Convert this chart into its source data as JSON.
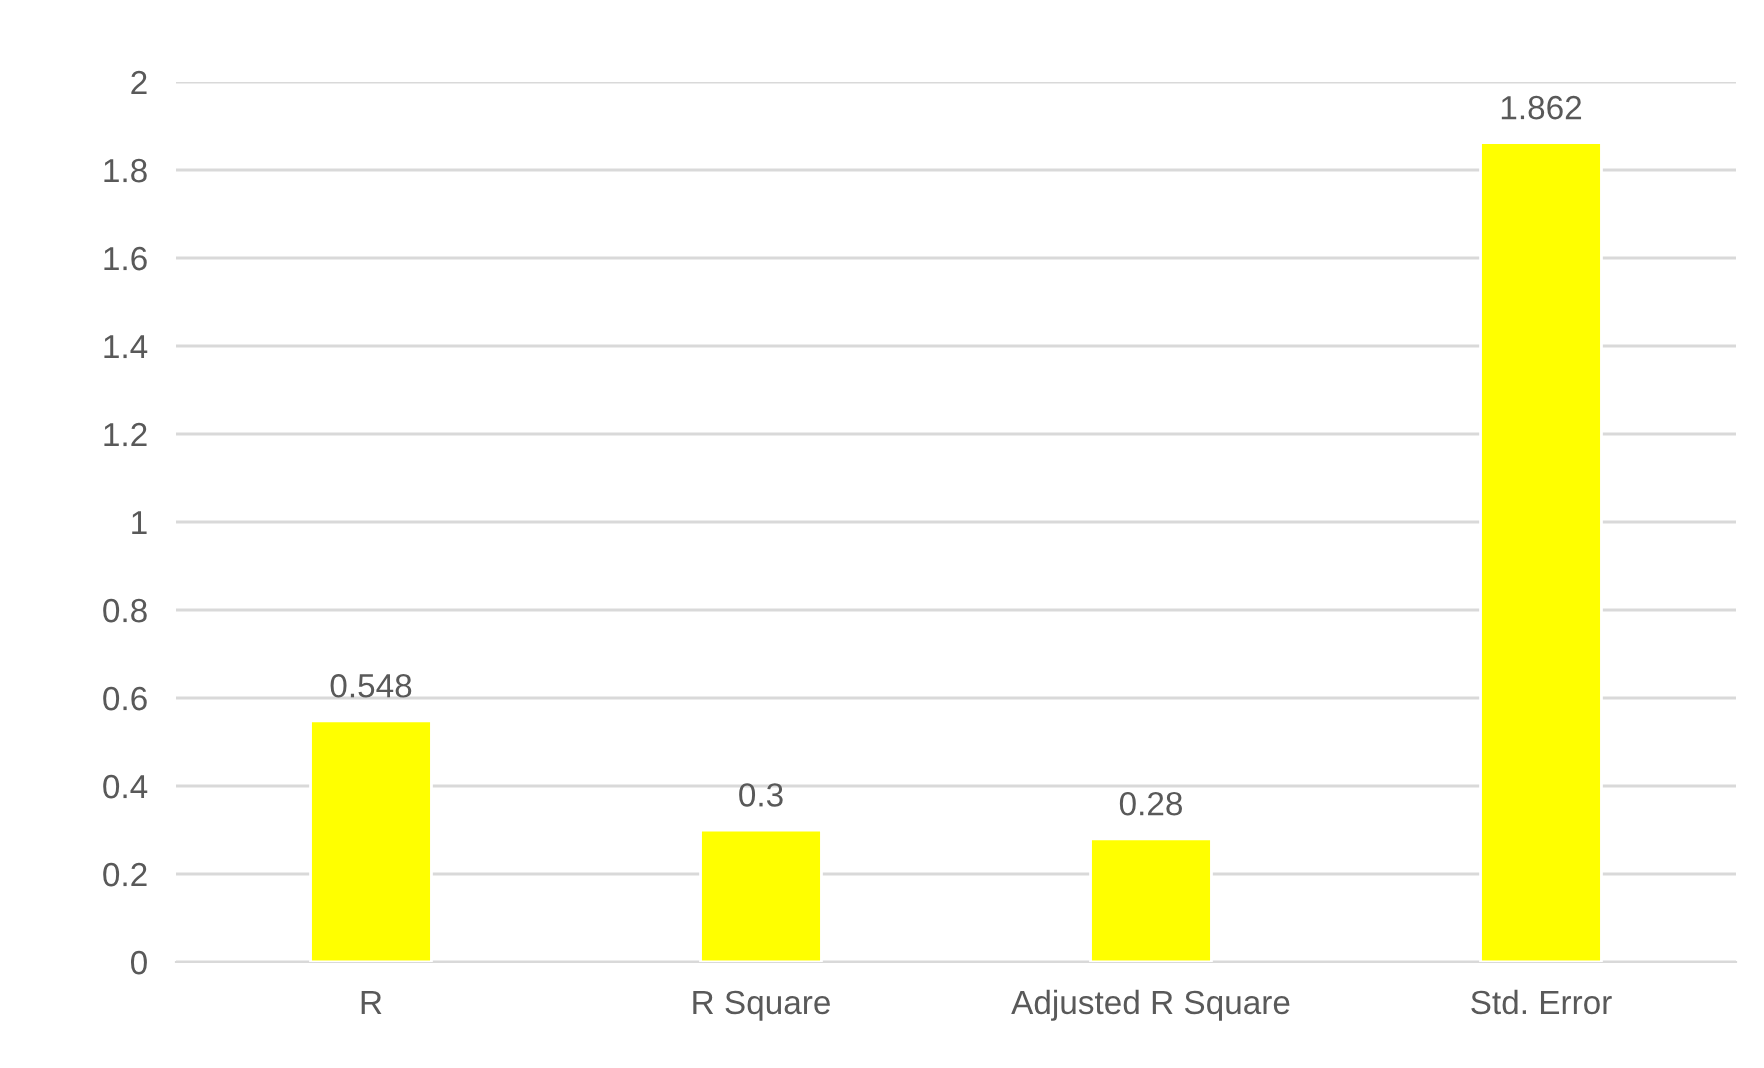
{
  "chart_data": {
    "type": "bar",
    "categories": [
      "R",
      "R Square",
      "Adjusted R Square",
      "Std. Error"
    ],
    "values": [
      0.548,
      0.3,
      0.28,
      1.862
    ],
    "color": "#ffff00",
    "ylim": [
      0,
      2
    ],
    "yticks": [
      0,
      0.2,
      0.4,
      0.6,
      0.8,
      1,
      1.2,
      1.4,
      1.6,
      1.8,
      2
    ],
    "grid": "y",
    "data_labels": true
  }
}
